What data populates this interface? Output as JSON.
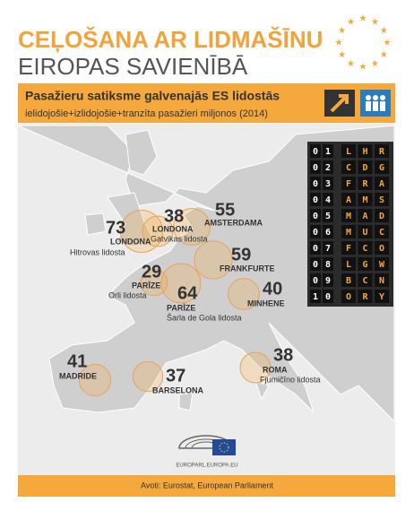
{
  "header": {
    "title_line1": "CEĻOŠANA AR LIDMAŠĪNU",
    "title_line2": "EIROPAS SAVIENĪBĀ"
  },
  "banner": {
    "title": "Pasažieru satiksme galvenajās ES lidostās",
    "subtitle": "ielidojošie+izlidojošie+tranzīta pasažieri miljonos (2014)"
  },
  "airports": [
    {
      "value": 73,
      "city": "LONDONA",
      "airport": "Hitrovas lidosta"
    },
    {
      "value": 38,
      "city": "LONDONA",
      "airport": "Gatvikas lidosta"
    },
    {
      "value": 55,
      "city": "AMSTERDAMA"
    },
    {
      "value": 59,
      "city": "FRANKFURTE"
    },
    {
      "value": 29,
      "city": "PARĪZE",
      "airport": "Orli lidosta"
    },
    {
      "value": 64,
      "city": "PARĪZE",
      "airport": "Šarla de Gola lidosta"
    },
    {
      "value": 40,
      "city": "MINHENE"
    },
    {
      "value": 41,
      "city": "MADRIDE"
    },
    {
      "value": 37,
      "city": "BARSELONA"
    },
    {
      "value": 38,
      "city": "ROMA",
      "airport": "Fjumičīno lidosta"
    }
  ],
  "board": [
    {
      "rank": [
        "0",
        "1"
      ],
      "code": [
        "L",
        "H",
        "R"
      ]
    },
    {
      "rank": [
        "0",
        "2"
      ],
      "code": [
        "C",
        "D",
        "G"
      ]
    },
    {
      "rank": [
        "0",
        "3"
      ],
      "code": [
        "F",
        "R",
        "A"
      ]
    },
    {
      "rank": [
        "0",
        "4"
      ],
      "code": [
        "A",
        "M",
        "S"
      ]
    },
    {
      "rank": [
        "0",
        "5"
      ],
      "code": [
        "M",
        "A",
        "D"
      ]
    },
    {
      "rank": [
        "0",
        "6"
      ],
      "code": [
        "M",
        "U",
        "C"
      ]
    },
    {
      "rank": [
        "0",
        "7"
      ],
      "code": [
        "F",
        "C",
        "O"
      ]
    },
    {
      "rank": [
        "0",
        "8"
      ],
      "code": [
        "L",
        "G",
        "W"
      ]
    },
    {
      "rank": [
        "0",
        "9"
      ],
      "code": [
        "B",
        "C",
        "N"
      ]
    },
    {
      "rank": [
        "1",
        "0"
      ],
      "code": [
        "O",
        "R",
        "Y"
      ]
    }
  ],
  "footer": {
    "logo_text": "EUROPARL.EUROPA.EU",
    "source": "Avoti: Eurostat, European Parliament"
  }
}
